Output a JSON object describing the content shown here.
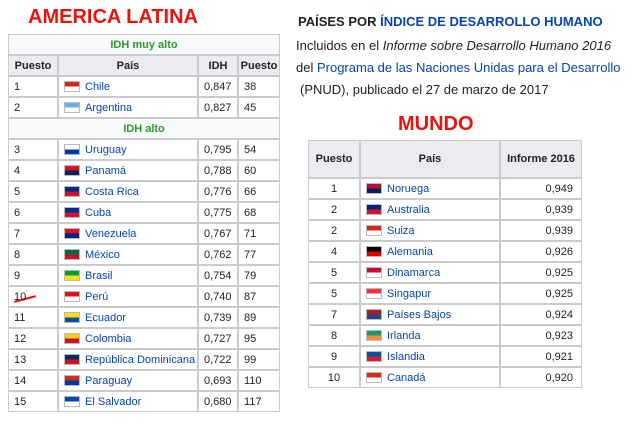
{
  "title": "AMERICA LATINA",
  "latin_table": {
    "headers": [
      "Puesto",
      "País",
      "IDH",
      "Puesto"
    ],
    "groups": [
      {
        "label": "IDH muy alto",
        "rows": [
          [
            "1",
            "Chile",
            "0,847",
            "38"
          ],
          [
            "2",
            "Argentina",
            "0,827",
            "45"
          ]
        ]
      },
      {
        "label": "IDH alto",
        "rows": [
          [
            "3",
            "Uruguay",
            "0,795",
            "54"
          ],
          [
            "4",
            "Panamá",
            "0,788",
            "60"
          ],
          [
            "5",
            "Costa Rica",
            "0,776",
            "66"
          ],
          [
            "6",
            "Cuba",
            "0,775",
            "68"
          ],
          [
            "7",
            "Venezuela",
            "0,767",
            "71"
          ],
          [
            "8",
            "México",
            "0,762",
            "77"
          ],
          [
            "9",
            "Brasil",
            "0,754",
            "79"
          ],
          [
            "10",
            "Perú",
            "0,740",
            "87"
          ],
          [
            "11",
            "Ecuador",
            "0,739",
            "89"
          ],
          [
            "12",
            "Colombia",
            "0,727",
            "95"
          ],
          [
            "13",
            "República Dominicana",
            "0,722",
            "99"
          ],
          [
            "14",
            "Paraguay",
            "0,693",
            "110"
          ],
          [
            "15",
            "El Salvador",
            "0,680",
            "117"
          ]
        ]
      }
    ]
  },
  "heading": {
    "prefix": "PAÍSES POR ",
    "link": "ÍNDICE DE DESARROLLO HUMANO"
  },
  "description": [
    [
      "Incluidos en el ",
      "Informe sobre Desarrollo Humano 2016"
    ],
    [
      "del ",
      "Programa de las Naciones Unidas para el Desarrollo"
    ],
    [
      "(PNUD), publicado el 27 de marzo de 2017"
    ]
  ],
  "world_title": "MUNDO",
  "world_table": {
    "headers": [
      "Puesto",
      "País",
      "Informe 2016"
    ],
    "rows": [
      [
        "1",
        "Noruega",
        "0,949"
      ],
      [
        "2",
        "Australia",
        "0,939"
      ],
      [
        "2",
        "Suiza",
        "0,939"
      ],
      [
        "4",
        "Alemania",
        "0,926"
      ],
      [
        "5",
        "Dinamarca",
        "0,925"
      ],
      [
        "5",
        "Singapur",
        "0,925"
      ],
      [
        "7",
        "Países Bajos",
        "0,924"
      ],
      [
        "8",
        "Irlanda",
        "0,923"
      ],
      [
        "9",
        "Islandia",
        "0,921"
      ],
      [
        "10",
        "Canadá",
        "0,920"
      ]
    ]
  }
}
